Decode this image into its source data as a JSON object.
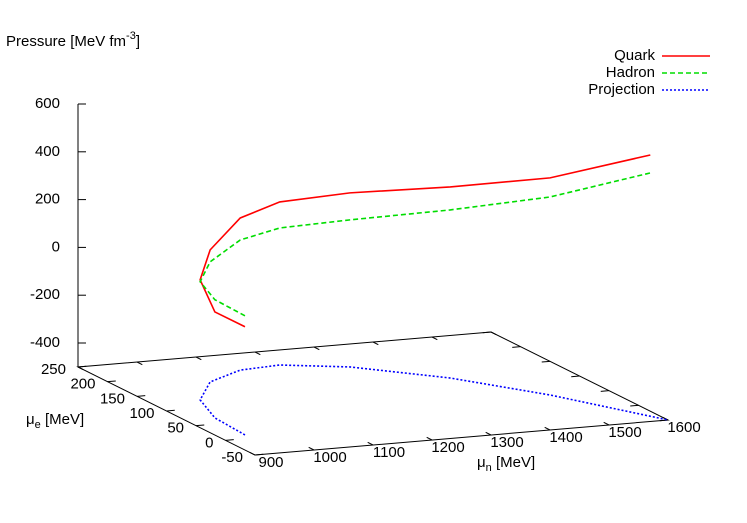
{
  "chart_data": {
    "type": "line3d",
    "x_label": [
      "μ",
      "n",
      " [MeV]"
    ],
    "y_label": [
      "μ",
      "e",
      " [MeV]"
    ],
    "z_label": [
      "Pressure [MeV fm",
      "-3",
      "]"
    ],
    "xlim": [
      900,
      1600
    ],
    "xticks": [
      900,
      1000,
      1100,
      1200,
      1300,
      1400,
      1500,
      1600
    ],
    "ylim": [
      -50,
      250
    ],
    "yticks": [
      -50,
      0,
      50,
      100,
      150,
      200,
      250
    ],
    "zlim": [
      -400,
      600
    ],
    "zticks": [
      -400,
      -200,
      0,
      200,
      400,
      600
    ],
    "legend": "top-right",
    "series": [
      {
        "name": "Quark",
        "color": "#ff0000",
        "style": "solid",
        "x": [
          944,
          950,
          981,
          1048,
          1126,
          1198,
          1294,
          1407,
          1502,
          1583
        ],
        "y": [
          11,
          68,
          124,
          174,
          201,
          206,
          183,
          126,
          52,
          -37
        ],
        "z": [
          -48,
          -57,
          2,
          52,
          136,
          182,
          228,
          299,
          408,
          596
        ]
      },
      {
        "name": "Hadron",
        "color": "#00dd00",
        "style": "dashed",
        "x": [
          944,
          950,
          981,
          1048,
          1126,
          1198,
          1294,
          1407,
          1502,
          1583
        ],
        "y": [
          11,
          68,
          124,
          174,
          201,
          206,
          183,
          126,
          52,
          -37
        ],
        "z": [
          -2,
          -6,
          -6,
          2,
          44,
          73,
          115,
          203,
          328,
          521
        ]
      },
      {
        "name": "Projection",
        "color": "#0000ff",
        "style": "dotted",
        "x": [
          944,
          950,
          981,
          1048,
          1126,
          1198,
          1294,
          1407,
          1502,
          1600
        ],
        "y": [
          11,
          68,
          124,
          174,
          201,
          206,
          183,
          126,
          52,
          -50
        ]
      }
    ]
  }
}
